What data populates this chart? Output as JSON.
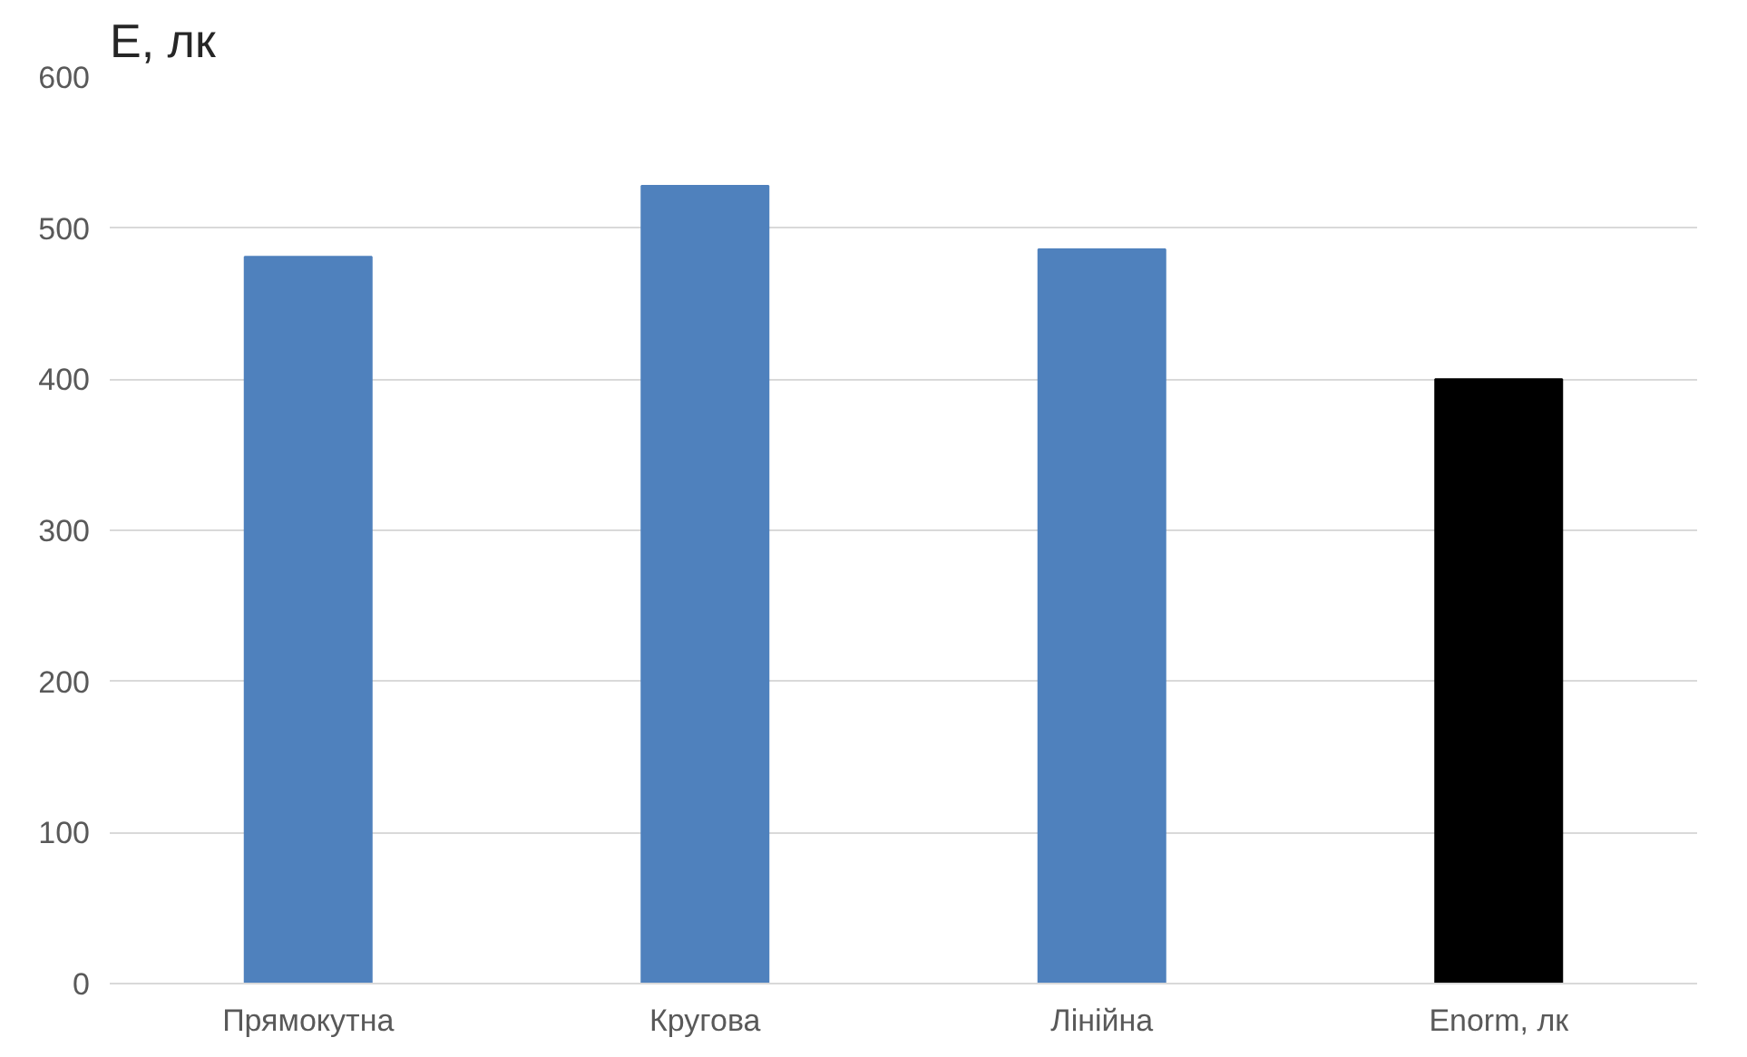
{
  "chart_data": {
    "type": "bar",
    "title": "E, лк",
    "categories": [
      "Прямокутна",
      "Кругова",
      "Лінійна",
      "Enorm, лк"
    ],
    "values": [
      481,
      528,
      486,
      400
    ],
    "colors": [
      "#4f81bd",
      "#4f81bd",
      "#4f81bd",
      "#000000"
    ],
    "ylim": [
      0,
      600
    ],
    "yticks": [
      0,
      100,
      200,
      300,
      400,
      500,
      600
    ],
    "grid": "y"
  }
}
